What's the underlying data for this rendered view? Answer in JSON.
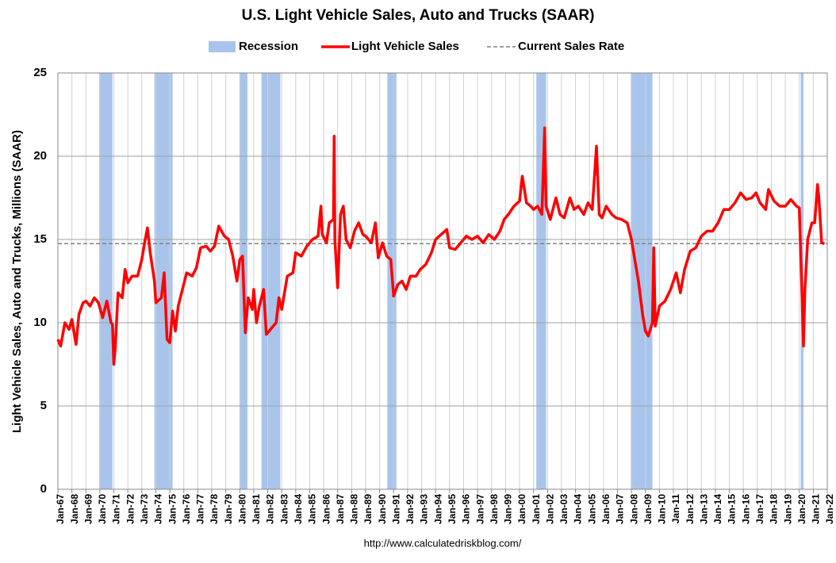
{
  "chart_data": {
    "type": "line",
    "title": "U.S. Light Vehicle Sales, Auto and Trucks (SAAR)",
    "y_label": "Light Vehicle Sales, Auto and Trucks, Millions (SAAR)",
    "source": "http://www.calculatedriskblog.com/",
    "xlim": [
      1967,
      2022
    ],
    "ylim": [
      0,
      25
    ],
    "yticks": [
      0,
      5,
      10,
      15,
      20,
      25
    ],
    "grid": true,
    "xticks": [
      {
        "value": 1967,
        "label": "Jan-67"
      },
      {
        "value": 1968,
        "label": "Jan-68"
      },
      {
        "value": 1969,
        "label": "Jan-69"
      },
      {
        "value": 1970,
        "label": "Jan-70"
      },
      {
        "value": 1971,
        "label": "Jan-71"
      },
      {
        "value": 1972,
        "label": "Jan-72"
      },
      {
        "value": 1973,
        "label": "Jan-73"
      },
      {
        "value": 1974,
        "label": "Jan-74"
      },
      {
        "value": 1975,
        "label": "Jan-75"
      },
      {
        "value": 1976,
        "label": "Jan-76"
      },
      {
        "value": 1977,
        "label": "Jan-77"
      },
      {
        "value": 1978,
        "label": "Jan-78"
      },
      {
        "value": 1979,
        "label": "Jan-79"
      },
      {
        "value": 1980,
        "label": "Jan-80"
      },
      {
        "value": 1981,
        "label": "Jan-81"
      },
      {
        "value": 1982,
        "label": "Jan-82"
      },
      {
        "value": 1983,
        "label": "Jan-83"
      },
      {
        "value": 1984,
        "label": "Jan-84"
      },
      {
        "value": 1985,
        "label": "Jan-85"
      },
      {
        "value": 1986,
        "label": "Jan-86"
      },
      {
        "value": 1987,
        "label": "Jan-87"
      },
      {
        "value": 1988,
        "label": "Jan-88"
      },
      {
        "value": 1989,
        "label": "Jan-89"
      },
      {
        "value": 1990,
        "label": "Jan-90"
      },
      {
        "value": 1991,
        "label": "Jan-91"
      },
      {
        "value": 1992,
        "label": "Jan-92"
      },
      {
        "value": 1993,
        "label": "Jan-93"
      },
      {
        "value": 1994,
        "label": "Jan-94"
      },
      {
        "value": 1995,
        "label": "Jan-95"
      },
      {
        "value": 1996,
        "label": "Jan-96"
      },
      {
        "value": 1997,
        "label": "Jan-97"
      },
      {
        "value": 1998,
        "label": "Jan-98"
      },
      {
        "value": 1999,
        "label": "Jan-99"
      },
      {
        "value": 2000,
        "label": "Jan-00"
      },
      {
        "value": 2001,
        "label": "Jan-01"
      },
      {
        "value": 2002,
        "label": "Jan-02"
      },
      {
        "value": 2003,
        "label": "Jan-03"
      },
      {
        "value": 2004,
        "label": "Jan-04"
      },
      {
        "value": 2005,
        "label": "Jan-05"
      },
      {
        "value": 2006,
        "label": "Jan-06"
      },
      {
        "value": 2007,
        "label": "Jan-07"
      },
      {
        "value": 2008,
        "label": "Jan-08"
      },
      {
        "value": 2009,
        "label": "Jan-09"
      },
      {
        "value": 2010,
        "label": "Jan-10"
      },
      {
        "value": 2011,
        "label": "Jan-11"
      },
      {
        "value": 2012,
        "label": "Jan-12"
      },
      {
        "value": 2013,
        "label": "Jan-13"
      },
      {
        "value": 2014,
        "label": "Jan-14"
      },
      {
        "value": 2015,
        "label": "Jan-15"
      },
      {
        "value": 2016,
        "label": "Jan-16"
      },
      {
        "value": 2017,
        "label": "Jan-17"
      },
      {
        "value": 2018,
        "label": "Jan-18"
      },
      {
        "value": 2019,
        "label": "Jan-19"
      },
      {
        "value": 2020,
        "label": "Jan-20"
      },
      {
        "value": 2021,
        "label": "Jan-21"
      },
      {
        "value": 2022,
        "label": "Jan-22"
      }
    ],
    "recessions": {
      "name": "Recession",
      "color": "#a9c4eb",
      "periods": [
        [
          1969.95,
          1970.9
        ],
        [
          1973.9,
          1975.2
        ],
        [
          1980.0,
          1980.55
        ],
        [
          1981.55,
          1982.9
        ],
        [
          1990.55,
          1991.2
        ],
        [
          2001.2,
          2001.9
        ],
        [
          2007.95,
          2009.5
        ],
        [
          2020.1,
          2020.3
        ]
      ]
    },
    "current": {
      "name": "Current Sales Rate",
      "value": 14.75,
      "color": "#808080"
    },
    "series": [
      {
        "name": "Light Vehicle Sales",
        "color": "#ff0000",
        "x": [
          1967.0,
          1967.2,
          1967.5,
          1967.8,
          1968.0,
          1968.3,
          1968.5,
          1968.8,
          1969.0,
          1969.3,
          1969.6,
          1969.9,
          1970.2,
          1970.5,
          1970.8,
          1970.9,
          1971.0,
          1971.1,
          1971.3,
          1971.6,
          1971.8,
          1972.0,
          1972.3,
          1972.7,
          1973.0,
          1973.2,
          1973.4,
          1973.6,
          1973.9,
          1974.0,
          1974.4,
          1974.6,
          1974.8,
          1975.0,
          1975.2,
          1975.4,
          1975.6,
          1975.9,
          1976.2,
          1976.6,
          1976.9,
          1977.2,
          1977.6,
          1977.9,
          1978.2,
          1978.5,
          1978.9,
          1979.2,
          1979.5,
          1979.8,
          1980.0,
          1980.2,
          1980.4,
          1980.6,
          1980.9,
          1981.0,
          1981.2,
          1981.4,
          1981.7,
          1981.9,
          1982.1,
          1982.3,
          1982.6,
          1982.8,
          1983.0,
          1983.4,
          1983.8,
          1984.0,
          1984.4,
          1984.8,
          1985.2,
          1985.6,
          1985.8,
          1985.9,
          1986.2,
          1986.4,
          1986.7,
          1986.75,
          1986.8,
          1987.0,
          1987.2,
          1987.4,
          1987.6,
          1987.9,
          1988.2,
          1988.5,
          1988.8,
          1989.0,
          1989.4,
          1989.7,
          1989.9,
          1990.2,
          1990.5,
          1990.8,
          1991.0,
          1991.3,
          1991.6,
          1991.9,
          1992.2,
          1992.6,
          1992.9,
          1993.3,
          1993.7,
          1994.0,
          1994.4,
          1994.8,
          1995.0,
          1995.4,
          1995.8,
          1996.2,
          1996.6,
          1997.0,
          1997.4,
          1997.8,
          1998.2,
          1998.6,
          1998.9,
          1999.2,
          1999.6,
          2000.0,
          2000.2,
          2000.5,
          2000.8,
          2001.0,
          2001.3,
          2001.6,
          2001.8,
          2001.9,
          2002.2,
          2002.6,
          2002.9,
          2003.2,
          2003.6,
          2003.9,
          2004.2,
          2004.6,
          2004.9,
          2005.2,
          2005.5,
          2005.7,
          2005.9,
          2006.2,
          2006.6,
          2006.9,
          2007.3,
          2007.7,
          2008.0,
          2008.2,
          2008.5,
          2008.8,
          2009.0,
          2009.2,
          2009.5,
          2009.6,
          2009.7,
          2010.0,
          2010.4,
          2010.8,
          2011.2,
          2011.5,
          2011.8,
          2012.2,
          2012.6,
          2013.0,
          2013.4,
          2013.8,
          2014.2,
          2014.6,
          2015.0,
          2015.4,
          2015.8,
          2016.2,
          2016.6,
          2016.9,
          2017.2,
          2017.6,
          2017.8,
          2018.2,
          2018.6,
          2019.0,
          2019.4,
          2019.8,
          2020.0,
          2020.2,
          2020.3,
          2020.4,
          2020.6,
          2020.9,
          2021.1,
          2021.3,
          2021.4,
          2021.6,
          2021.8
        ],
        "values": [
          9.0,
          8.6,
          10.0,
          9.6,
          10.2,
          8.7,
          10.5,
          11.2,
          11.3,
          11.0,
          11.5,
          11.2,
          10.3,
          11.3,
          10.0,
          9.9,
          7.5,
          8.5,
          11.8,
          11.5,
          13.2,
          12.4,
          12.8,
          12.8,
          13.8,
          14.8,
          15.7,
          14.2,
          12.5,
          11.2,
          11.5,
          13.0,
          9.0,
          8.8,
          10.7,
          9.5,
          11.0,
          12.0,
          13.0,
          12.8,
          13.3,
          14.5,
          14.6,
          14.3,
          14.6,
          15.8,
          15.2,
          15.0,
          14.0,
          12.5,
          13.8,
          14.0,
          9.4,
          11.5,
          10.8,
          12.0,
          10.0,
          11.0,
          12.0,
          9.3,
          9.5,
          9.7,
          10.0,
          11.5,
          10.8,
          12.8,
          13.0,
          14.2,
          14.0,
          14.6,
          15.0,
          15.2,
          17.0,
          15.3,
          14.8,
          16.0,
          16.2,
          21.2,
          15.0,
          12.1,
          16.5,
          17.0,
          15.0,
          14.5,
          15.5,
          16.0,
          15.3,
          15.2,
          14.8,
          16.0,
          13.9,
          14.8,
          14.0,
          13.8,
          11.6,
          12.3,
          12.5,
          12.0,
          12.8,
          12.8,
          13.2,
          13.5,
          14.2,
          15.0,
          15.3,
          15.6,
          14.5,
          14.4,
          14.8,
          15.2,
          15.0,
          15.2,
          14.8,
          15.3,
          15.0,
          15.5,
          16.2,
          16.5,
          17.0,
          17.3,
          18.8,
          17.2,
          17.0,
          16.8,
          17.0,
          16.5,
          21.7,
          17.0,
          16.2,
          17.5,
          16.5,
          16.3,
          17.5,
          16.8,
          17.0,
          16.5,
          17.2,
          16.8,
          20.6,
          16.5,
          16.3,
          17.0,
          16.5,
          16.3,
          16.2,
          16.0,
          15.0,
          14.0,
          12.5,
          10.5,
          9.5,
          9.2,
          10.0,
          14.5,
          9.8,
          11.0,
          11.3,
          12.0,
          13.0,
          11.8,
          13.2,
          14.3,
          14.5,
          15.2,
          15.5,
          15.5,
          16.0,
          16.8,
          16.8,
          17.2,
          17.8,
          17.4,
          17.5,
          17.8,
          17.2,
          16.8,
          18.0,
          17.3,
          17.0,
          17.0,
          17.4,
          17.0,
          16.9,
          11.4,
          8.6,
          12.0,
          15.0,
          16.0,
          16.0,
          18.3,
          17.5,
          14.8,
          14.75
        ]
      }
    ]
  }
}
